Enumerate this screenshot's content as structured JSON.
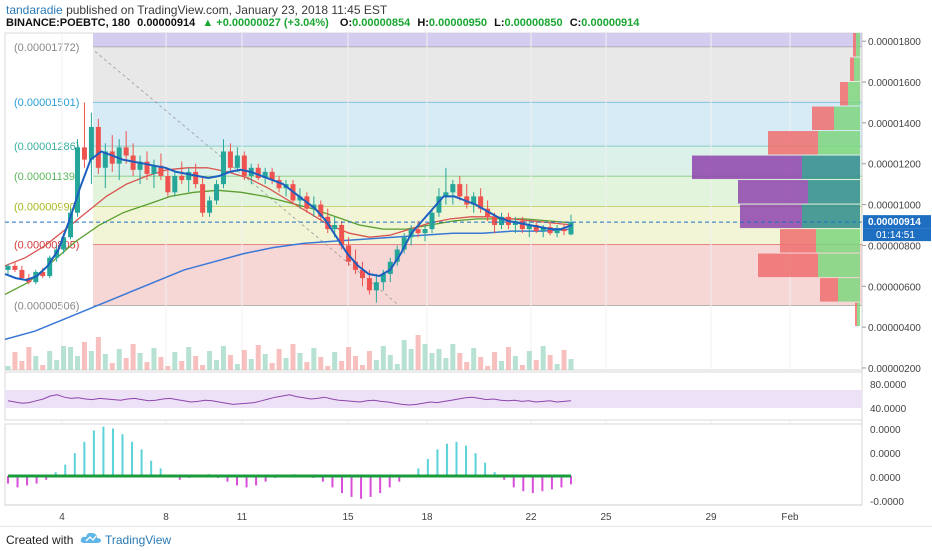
{
  "header": {
    "author": "tandaradie",
    "published": "published on TradingView.com, January 23, 2018 11:45 EST",
    "symbol": "BINANCE:POEBTC, 180",
    "last": "0.00000914",
    "change": "+0.00000027 (+3.04%)",
    "o_label": "O:",
    "o_value": "0.00000854",
    "h_label": "H:",
    "h_value": "0.00000950",
    "l_label": "L:",
    "l_value": "0.00000850",
    "c_label": "C:",
    "c_value": "0.00000914"
  },
  "footer": {
    "created_with": "Created with",
    "brand": "TradingView"
  },
  "colors": {
    "up": "#26a69a",
    "down": "#ef5350",
    "ema_blue": "#1c5fbf",
    "ma_red": "#d9534f",
    "ma_green": "#5a9e2f",
    "ma_slow_blue": "#3a78d6",
    "rsi": "#8e44ad",
    "osc_cyan": "#5bd3d8",
    "osc_magenta": "#d94fd9",
    "zero_line": "#1a9c3c",
    "price_tag": "#1e6fc2"
  },
  "chart_data": {
    "type": "candlestick",
    "title": "",
    "x_labels": [
      "4",
      "8",
      "11",
      "15",
      "18",
      "22",
      "25",
      "29",
      "Feb"
    ],
    "y_ticks": [
      "0.00001800",
      "0.00001600",
      "0.00001400",
      "0.00001200",
      "0.00001000",
      "0.00000800",
      "0.00000600",
      "0.00000400",
      "0.00000200"
    ],
    "fib_levels": [
      {
        "label": "(0.00001772)",
        "value": 1.772e-05,
        "text_color": "#888888",
        "fill": "#e8e8e8"
      },
      {
        "label": "(0.00001501)",
        "value": 1.501e-05,
        "text_color": "#2a9fd6",
        "fill": "#d7ebf7"
      },
      {
        "label": "(0.00001286)",
        "value": 1.286e-05,
        "text_color": "#3ab09e",
        "fill": "#dcf1ea"
      },
      {
        "label": "(0.00001139)",
        "value": 1.139e-05,
        "text_color": "#5cb85c",
        "fill": "#e3f4dc"
      },
      {
        "label": "(0.00000990)",
        "value": 9.9e-06,
        "text_color": "#a8b820",
        "fill": "#f1f5d6"
      },
      {
        "label": "(0.00000805)",
        "value": 8.05e-06,
        "text_color": "#d43a3a",
        "fill": "#f7d6d6"
      },
      {
        "label": "(0.00000506)",
        "value": 5.06e-06,
        "text_color": "#888888",
        "fill": "#ffffff"
      }
    ],
    "current_price": "0.00000914",
    "countdown": "01:14:51",
    "candles": [
      [
        6.8e-06,
        7.1e-06,
        6.6e-06,
        7e-06
      ],
      [
        7e-06,
        7.2e-06,
        6.7e-06,
        6.8e-06
      ],
      [
        6.8e-06,
        7e-06,
        6.3e-06,
        6.4e-06
      ],
      [
        6.4e-06,
        6.6e-06,
        6.1e-06,
        6.2e-06
      ],
      [
        6.2e-06,
        6.8e-06,
        6.1e-06,
        6.7e-06
      ],
      [
        6.7e-06,
        6.9e-06,
        6.4e-06,
        6.5e-06
      ],
      [
        6.5e-06,
        7.5e-06,
        6.4e-06,
        7.4e-06
      ],
      [
        7.4e-06,
        8e-06,
        7.2e-06,
        7.8e-06
      ],
      [
        7.8e-06,
        8.6e-06,
        7.6e-06,
        8.4e-06
      ],
      [
        8.4e-06,
        9.8e-06,
        8.3e-06,
        9.6e-06
      ],
      [
        9.6e-06,
        1.32e-05,
        9.4e-06,
        1.28e-05
      ],
      [
        1.28e-05,
        1.5e-05,
        1.18e-05,
        1.22e-05
      ],
      [
        1.22e-05,
        1.45e-05,
        1.1e-05,
        1.38e-05
      ],
      [
        1.38e-05,
        1.42e-05,
        1.15e-05,
        1.18e-05
      ],
      [
        1.18e-05,
        1.3e-05,
        1.08e-05,
        1.26e-05
      ],
      [
        1.26e-05,
        1.34e-05,
        1.16e-05,
        1.2e-05
      ],
      [
        1.2e-05,
        1.32e-05,
        1.12e-05,
        1.28e-05
      ],
      [
        1.28e-05,
        1.36e-05,
        1.2e-05,
        1.24e-05
      ],
      [
        1.24e-05,
        1.3e-05,
        1.14e-05,
        1.17e-05
      ],
      [
        1.17e-05,
        1.24e-05,
        1.1e-05,
        1.21e-05
      ],
      [
        1.21e-05,
        1.26e-05,
        1.12e-05,
        1.15e-05
      ],
      [
        1.15e-05,
        1.22e-05,
        1.08e-05,
        1.19e-05
      ],
      [
        1.19e-05,
        1.25e-05,
        1.12e-05,
        1.14e-05
      ],
      [
        1.14e-05,
        1.18e-05,
        1.04e-05,
        1.06e-05
      ],
      [
        1.06e-05,
        1.16e-05,
        1.04e-05,
        1.14e-05
      ],
      [
        1.14e-05,
        1.21e-05,
        1.1e-05,
        1.12e-05
      ],
      [
        1.12e-05,
        1.18e-05,
        1.06e-05,
        1.16e-05
      ],
      [
        1.16e-05,
        1.2e-05,
        1.08e-05,
        1.1e-05
      ],
      [
        1.1e-05,
        1.14e-05,
        9.4e-06,
        9.6e-06
      ],
      [
        9.6e-06,
        1.04e-05,
        9.4e-06,
        1.02e-05
      ],
      [
        1.02e-05,
        1.12e-05,
        1e-05,
        1.1e-05
      ],
      [
        1.1e-05,
        1.32e-05,
        1.08e-05,
        1.26e-05
      ],
      [
        1.26e-05,
        1.3e-05,
        1.16e-05,
        1.18e-05
      ],
      [
        1.18e-05,
        1.28e-05,
        1.16e-05,
        1.24e-05
      ],
      [
        1.24e-05,
        1.26e-05,
        1.12e-05,
        1.14e-05
      ],
      [
        1.14e-05,
        1.2e-05,
        1.1e-05,
        1.18e-05
      ],
      [
        1.18e-05,
        1.2e-05,
        1.12e-05,
        1.13e-05
      ],
      [
        1.13e-05,
        1.18e-05,
        1.1e-05,
        1.16e-05
      ],
      [
        1.16e-05,
        1.18e-05,
        1.1e-05,
        1.12e-05
      ],
      [
        1.12e-05,
        1.14e-05,
        1.06e-05,
        1.08e-05
      ],
      [
        1.08e-05,
        1.12e-05,
        1.04e-05,
        1.1e-05
      ],
      [
        1.1e-05,
        1.12e-05,
        1e-05,
        1.02e-05
      ],
      [
        1.02e-05,
        1.08e-05,
        9.8e-06,
        1.04e-05
      ],
      [
        1.04e-05,
        1.06e-05,
        9.6e-06,
        9.8e-06
      ],
      [
        9.8e-06,
        1.04e-05,
        9.4e-06,
        1e-05
      ],
      [
        1e-05,
        1.02e-05,
        9.2e-06,
        9.4e-06
      ],
      [
        9.4e-06,
        9.8e-06,
        8.6e-06,
        8.8e-06
      ],
      [
        8.8e-06,
        9.4e-06,
        8.4e-06,
        9e-06
      ],
      [
        9e-06,
        9.2e-06,
        7.8e-06,
        8e-06
      ],
      [
        8e-06,
        8.4e-06,
        7e-06,
        7.2e-06
      ],
      [
        7.2e-06,
        7.8e-06,
        6.6e-06,
        6.8e-06
      ],
      [
        6.8e-06,
        7.2e-06,
        6e-06,
        6.4e-06
      ],
      [
        6.4e-06,
        6.8e-06,
        5.6e-06,
        5.8e-06
      ],
      [
        5.8e-06,
        6.6e-06,
        5.2e-06,
        6.2e-06
      ],
      [
        6.2e-06,
        6.8e-06,
        5.8e-06,
        6.6e-06
      ],
      [
        6.6e-06,
        7.4e-06,
        6.2e-06,
        7.2e-06
      ],
      [
        7.2e-06,
        8e-06,
        7e-06,
        7.8e-06
      ],
      [
        7.8e-06,
        8.6e-06,
        7.6e-06,
        8.4e-06
      ],
      [
        8.4e-06,
        9e-06,
        8e-06,
        8.8e-06
      ],
      [
        8.8e-06,
        9.2e-06,
        8.4e-06,
        8.6e-06
      ],
      [
        8.6e-06,
        9e-06,
        8.2e-06,
        8.8e-06
      ],
      [
        8.8e-06,
        9.8e-06,
        8.6e-06,
        9.6e-06
      ],
      [
        9.6e-06,
        1.08e-05,
        9.4e-06,
        1.04e-05
      ],
      [
        1.04e-05,
        1.18e-05,
        1e-05,
        1.06e-05
      ],
      [
        1.06e-05,
        1.12e-05,
        1e-05,
        1.1e-05
      ],
      [
        1.1e-05,
        1.14e-05,
        1.02e-05,
        1.04e-05
      ],
      [
        1.04e-05,
        1.1e-05,
        9.8e-06,
        1e-05
      ],
      [
        1e-05,
        1.06e-05,
        9.6e-06,
        1.04e-05
      ],
      [
        1.04e-05,
        1.08e-05,
        9.6e-06,
        9.8e-06
      ],
      [
        9.8e-06,
        1.02e-05,
        9.2e-06,
        9.4e-06
      ],
      [
        9.4e-06,
        9.6e-06,
        8.6e-06,
        9e-06
      ],
      [
        9e-06,
        9.6e-06,
        8.8e-06,
        9.4e-06
      ],
      [
        9.4e-06,
        9.6e-06,
        8.8e-06,
        9e-06
      ],
      [
        9e-06,
        9.4e-06,
        8.6e-06,
        9.2e-06
      ],
      [
        9.2e-06,
        9.4e-06,
        8.6e-06,
        8.8e-06
      ],
      [
        8.8e-06,
        9.2e-06,
        8.4e-06,
        9e-06
      ],
      [
        9e-06,
        9.2e-06,
        8.6e-06,
        8.7e-06
      ],
      [
        8.7e-06,
        9e-06,
        8.4e-06,
        8.9e-06
      ],
      [
        8.9e-06,
        9.1e-06,
        8.5e-06,
        8.6e-06
      ],
      [
        8.6e-06,
        9e-06,
        8.4e-06,
        8.8e-06
      ],
      [
        8.8e-06,
        9e-06,
        8.5e-06,
        8.7e-06
      ],
      [
        8.54e-06,
        9.5e-06,
        8.5e-06,
        9.14e-06
      ]
    ],
    "ema_fast": [
      6.6e-06,
      6.4e-06,
      6.3e-06,
      6.5e-06,
      7e-06,
      7.8e-06,
      9.2e-06,
      1.08e-05,
      1.22e-05,
      1.26e-05,
      1.24e-05,
      1.22e-05,
      1.21e-05,
      1.2e-05,
      1.19e-05,
      1.18e-05,
      1.16e-05,
      1.15e-05,
      1.14e-05,
      1.13e-05,
      1.14e-05,
      1.16e-05,
      1.17e-05,
      1.16e-05,
      1.14e-05,
      1.12e-05,
      1.1e-05,
      1.06e-05,
      1.02e-05,
      9.8e-06,
      9.2e-06,
      8.4e-06,
      7.6e-06,
      7e-06,
      6.6e-06,
      6.5e-06,
      6.8e-06,
      7.6e-06,
      8.6e-06,
      9.2e-06,
      9.8e-06,
      1.04e-05,
      1.04e-05,
      1.02e-05,
      1e-05,
      9.7e-06,
      9.4e-06,
      9.2e-06,
      9.1e-06,
      9e-06,
      8.9e-06,
      8.8e-06,
      8.8e-06,
      9e-06
    ],
    "ma_red": [
      7e-06,
      7.4e-06,
      8e-06,
      8.8e-06,
      9.6e-06,
      1.04e-05,
      1.1e-05,
      1.14e-05,
      1.17e-05,
      1.18e-05,
      1.18e-05,
      1.16e-05,
      1.13e-05,
      1.08e-05,
      1.02e-05,
      9.6e-06,
      9e-06,
      8.6e-06,
      8.4e-06,
      8.5e-06,
      8.8e-06,
      9.1e-06,
      9.3e-06,
      9.4e-06,
      9.4e-06,
      9.3e-06,
      9.2e-06,
      9.1e-06,
      9e-06
    ],
    "ma_green": [
      5.6e-06,
      6.2e-06,
      7.2e-06,
      8.2e-06,
      9e-06,
      9.6e-06,
      1e-05,
      1.04e-05,
      1.06e-05,
      1.07e-05,
      1.06e-05,
      1.04e-05,
      1.01e-05,
      9.8e-06,
      9.4e-06,
      9e-06,
      8.8e-06,
      8.8e-06,
      9e-06,
      9.2e-06,
      9.3e-06,
      9.3e-06,
      9.3e-06,
      9.2e-06,
      9.1e-06
    ],
    "ma_slow": [
      3.4e-06,
      3.8e-06,
      4.4e-06,
      5e-06,
      5.6e-06,
      6.2e-06,
      6.8e-06,
      7.2e-06,
      7.6e-06,
      7.9e-06,
      8.1e-06,
      8.2e-06,
      8.3e-06,
      8.4e-06,
      8.5e-06,
      8.6e-06,
      8.6e-06,
      8.7e-06,
      8.7e-06,
      8.8e-06
    ],
    "volume_profile": [
      {
        "price_from": 1.72e-05,
        "price_to": 1.84e-05,
        "up": 4,
        "down": 3
      },
      {
        "price_from": 1.6e-05,
        "price_to": 1.72e-05,
        "up": 6,
        "down": 4
      },
      {
        "price_from": 1.48e-05,
        "price_to": 1.6e-05,
        "up": 12,
        "down": 8
      },
      {
        "price_from": 1.36e-05,
        "price_to": 1.48e-05,
        "up": 26,
        "down": 22
      },
      {
        "price_from": 1.24e-05,
        "price_to": 1.36e-05,
        "up": 42,
        "down": 50
      },
      {
        "price_from": 1.12e-05,
        "price_to": 1.24e-05,
        "up": 58,
        "down": 110
      },
      {
        "price_from": 1e-05,
        "price_to": 1.12e-05,
        "up": 52,
        "down": 70
      },
      {
        "price_from": 8.8e-06,
        "price_to": 1e-05,
        "up": 58,
        "down": 62
      },
      {
        "price_from": 7.6e-06,
        "price_to": 8.8e-06,
        "up": 44,
        "down": 36
      },
      {
        "price_from": 6.4e-06,
        "price_to": 7.6e-06,
        "up": 42,
        "down": 60
      },
      {
        "price_from": 5.2e-06,
        "price_to": 6.4e-06,
        "up": 22,
        "down": 18
      },
      {
        "price_from": 4e-06,
        "price_to": 5.2e-06,
        "up": 3,
        "down": 2
      }
    ],
    "rsi_ticks": [
      "80.0000",
      "40.0000"
    ],
    "rsi_range": [
      20,
      100
    ],
    "rsi_band": [
      40,
      70
    ],
    "rsi": [
      52,
      50,
      48,
      49,
      52,
      55,
      60,
      62,
      58,
      56,
      57,
      55,
      54,
      56,
      55,
      54,
      53,
      55,
      56,
      54,
      52,
      53,
      55,
      56,
      54,
      52,
      50,
      51,
      53,
      52,
      50,
      48,
      46,
      47,
      48,
      49,
      52,
      55,
      58,
      60,
      62,
      59,
      57,
      55,
      56,
      58,
      55,
      53,
      52,
      51,
      50,
      52,
      53,
      51,
      50,
      48,
      46,
      45,
      46,
      48,
      50,
      49,
      51,
      53,
      55,
      57,
      58,
      56,
      54,
      55,
      53,
      52,
      53,
      51,
      52,
      50,
      51,
      52,
      50,
      51,
      52
    ],
    "osc_ticks": [
      "0.0000",
      "0.0000",
      "0.0000",
      "-0.0000"
    ],
    "osc_hist": [
      -0.2,
      -0.3,
      -0.25,
      -0.2,
      -0.1,
      0.1,
      0.3,
      0.6,
      0.9,
      1.2,
      1.3,
      1.25,
      1.1,
      0.9,
      0.7,
      0.4,
      0.2,
      0.0,
      -0.1,
      -0.05,
      0.0,
      0.05,
      -0.05,
      -0.15,
      -0.25,
      -0.3,
      -0.25,
      -0.15,
      -0.05,
      0.0,
      0.05,
      0.02,
      -0.05,
      -0.15,
      -0.3,
      -0.45,
      -0.55,
      -0.6,
      -0.55,
      -0.45,
      -0.3,
      -0.15,
      0.0,
      0.2,
      0.45,
      0.7,
      0.85,
      0.9,
      0.8,
      0.6,
      0.35,
      0.1,
      -0.1,
      -0.3,
      -0.4,
      -0.45,
      -0.4,
      -0.35,
      -0.3,
      -0.22
    ]
  }
}
